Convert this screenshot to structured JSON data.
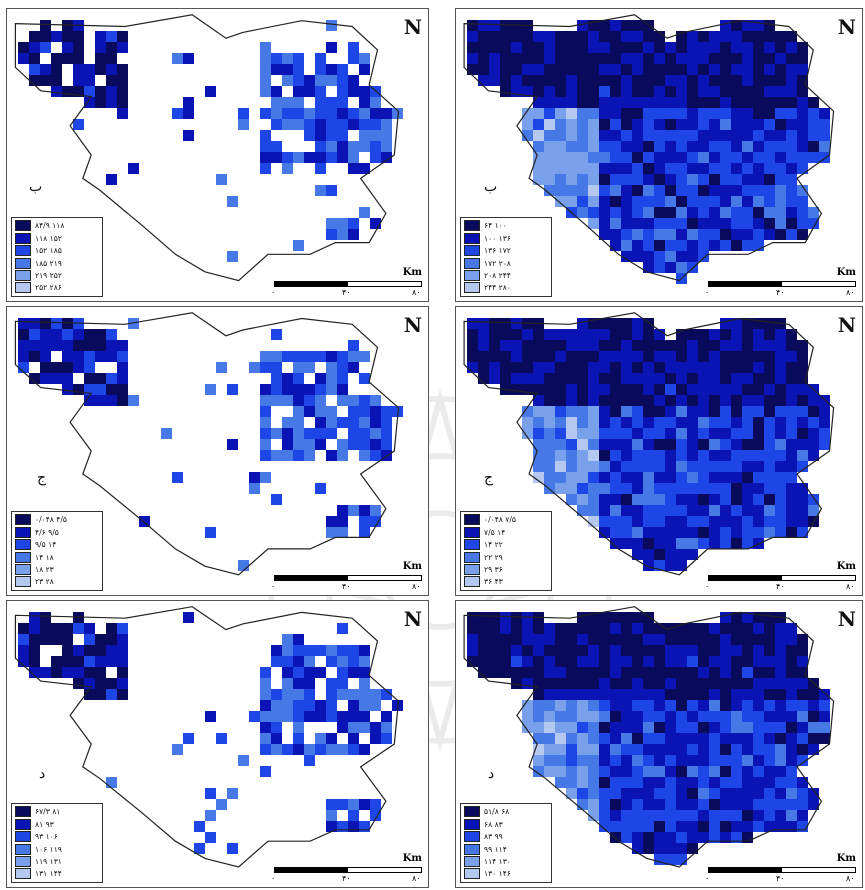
{
  "north_label": "N",
  "scale": {
    "unit": "Km",
    "ticks": [
      "۰",
      "۴۰",
      "۸۰"
    ]
  },
  "palette": [
    "#0a0a5c",
    "#0a14b4",
    "#1e46e6",
    "#4678e6",
    "#78a0eb",
    "#b4c8f0"
  ],
  "panels": [
    {
      "id": "p1",
      "letter": "ب",
      "legend": [
        "۸۴/۹ ۱۱۸",
        "۱۱۸ ۱۵۲",
        "۱۵۲ ۱۸۵",
        "۱۸۵ ۲۱۹",
        "۲۱۹ ۲۵۲",
        "۲۵۲ ۲۸۶"
      ]
    },
    {
      "id": "p2",
      "letter": "ب",
      "legend": [
        "۶۴ ۱۰۰",
        "۱۰۰ ۱۳۶",
        "۱۳۶ ۱۷۲",
        "۱۷۲ ۲۰۸",
        "۲۰۸ ۲۴۴",
        "۲۴۴ ۲۸۰"
      ]
    },
    {
      "id": "p3",
      "letter": "ج",
      "legend": [
        "۰/۰۴۸ ۴/۵",
        "۴/۶ ۹/۵",
        "۹/۵ ۱۴",
        "۱۴ ۱۸",
        "۱۸ ۲۳",
        "۲۳ ۲۸"
      ]
    },
    {
      "id": "p4",
      "letter": "ج",
      "legend": [
        "۰/۰۴۸ ۷/۵",
        "۷/۵ ۱۴",
        "۱۴ ۲۲",
        "۲۲ ۲۹",
        "۲۹ ۳۶",
        "۳۶ ۴۳"
      ]
    },
    {
      "id": "p5",
      "letter": "د",
      "legend": [
        "۶۷/۳ ۸۱",
        "۸۱ ۹۳",
        "۹۳ ۱۰۶",
        "۱۰۶ ۱۱۹",
        "۱۱۹ ۱۳۱",
        "۱۳۱ ۱۴۴"
      ]
    },
    {
      "id": "p6",
      "letter": "د",
      "legend": [
        "۵۱/۸ ۶۸",
        "۶۸ ۸۳",
        "۸۳ ۹۹",
        "۹۹ ۱۱۴",
        "۱۱۴ ۱۳۰",
        "۱۳۰ ۱۴۶"
      ]
    }
  ]
}
